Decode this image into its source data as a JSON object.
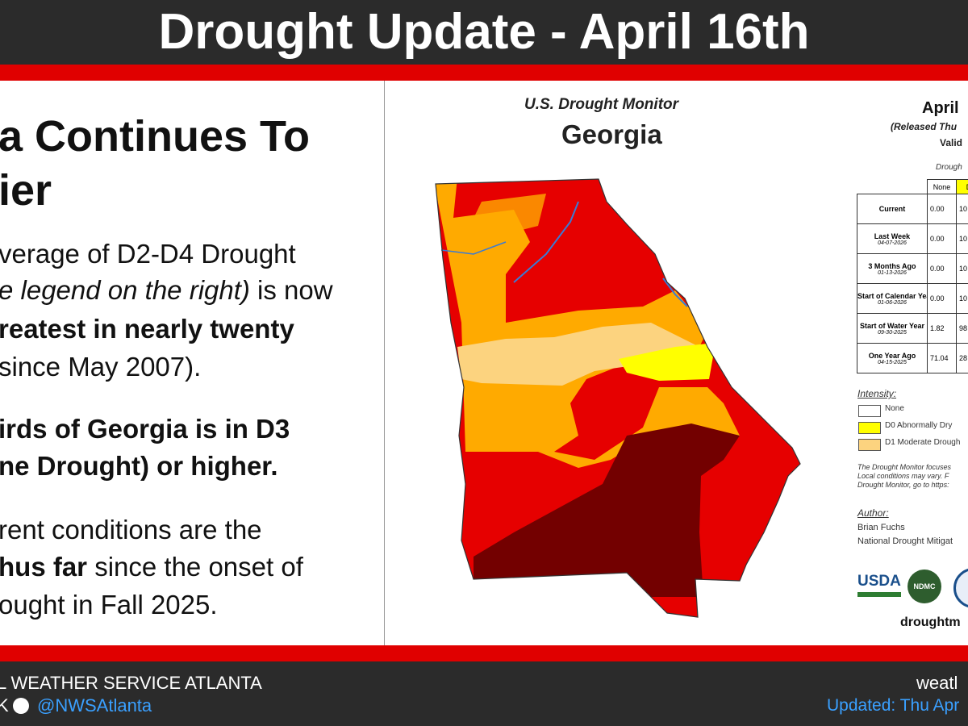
{
  "header": {
    "title": "Drought Update - April 16th"
  },
  "left": {
    "heading": [
      "a Continues To",
      "ier"
    ],
    "lines": [
      [
        {
          "text": "verage of D2-D4 Drought",
          "style": "plain"
        }
      ],
      [
        {
          "text": "e legend on the right)",
          "style": "italic"
        },
        {
          "text": " is now",
          "style": "plain"
        }
      ],
      [
        {
          "text": "reatest in nearly twenty",
          "style": "bold"
        }
      ],
      [
        {
          "text": "since May 2007).",
          "style": "plain"
        }
      ],
      [
        {
          "text": "irds of Georgia is in D3",
          "style": "bold"
        }
      ],
      [
        {
          "text": "ne Drought) or higher.",
          "style": "bold"
        }
      ],
      [
        {
          "text": "rent conditions are the",
          "style": "plain"
        }
      ],
      [
        {
          "text": "hus far",
          "style": "bold"
        },
        {
          "text": " since the onset of",
          "style": "plain"
        }
      ],
      [
        {
          "text": "ought in Fall 2025.",
          "style": "plain"
        }
      ]
    ]
  },
  "map": {
    "source": "U.S. Drought Monitor",
    "state": "Georgia",
    "date": "April",
    "released": "(Released Thu",
    "valid": "Valid",
    "table_caption": "Drough",
    "table": {
      "header": [
        "None",
        "D0"
      ],
      "rows": [
        {
          "label": "Current",
          "date": null,
          "values": [
            "0.00",
            "10"
          ]
        },
        {
          "label": "Last Week",
          "date": "04-07-2026",
          "values": [
            "0.00",
            "10"
          ]
        },
        {
          "label": "3 Months Ago",
          "date": "01-13-2026",
          "values": [
            "0.00",
            "10"
          ]
        },
        {
          "label": "Start of Calendar Year",
          "date": "01-06-2026",
          "values": [
            "0.00",
            "10"
          ]
        },
        {
          "label": "Start of Water Year",
          "date": "09-30-2025",
          "values": [
            "1.82",
            "98"
          ]
        },
        {
          "label": "One Year Ago",
          "date": "04-15-2025",
          "values": [
            "71.04",
            "28"
          ]
        }
      ]
    },
    "intensity": {
      "title": "Intensity:",
      "items": [
        "None",
        "D0 Abnormally Dry",
        "D1 Moderate Drough"
      ]
    },
    "notes": [
      "The Drought Monitor focuses",
      "Local conditions may vary. F",
      "Drought Monitor, go to https:"
    ],
    "author": {
      "title": "Author:",
      "name": "Brian Fuchs",
      "org": "National Drought Mitigat"
    },
    "logos": [
      "USDA",
      "NDMC"
    ],
    "site": "droughtm"
  },
  "footer": {
    "office": "L WEATHER SERVICE ATLANTA",
    "social_prefix": "K",
    "handle": "@NWSAtlanta",
    "site": "weatl",
    "updated": "Updated: Thu Apr"
  }
}
